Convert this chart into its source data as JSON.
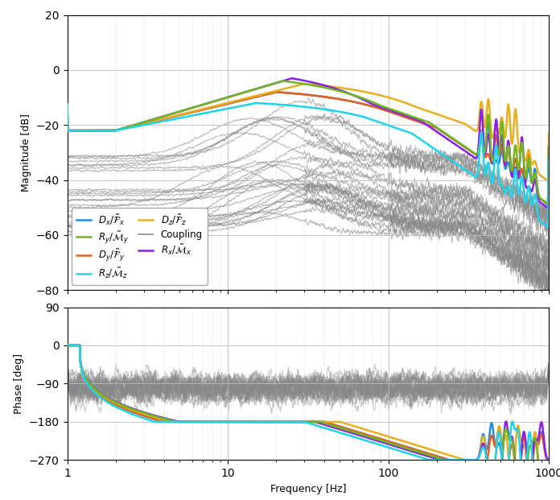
{
  "freq_min": 1,
  "freq_max": 1000,
  "mag_ylim": [
    -80,
    20
  ],
  "mag_yticks": [
    -80,
    -60,
    -40,
    -20,
    0,
    20
  ],
  "phase_ylim": [
    -270,
    90
  ],
  "phase_yticks": [
    -270,
    -180,
    -90,
    0,
    90
  ],
  "colors": {
    "Dx": "#1f8be8",
    "Dy": "#e8601f",
    "Dz": "#e8b01f",
    "Rx": "#8b1fe8",
    "Ry": "#6eb81f",
    "Rz": "#1fd4e8",
    "coupling": "#888888"
  },
  "legend_order_col1": [
    "Dx",
    "Dy",
    "Dz",
    "Rx"
  ],
  "legend_order_col2": [
    "Ry",
    "Rz",
    "coupling"
  ],
  "legend_labels": {
    "Dx": "$D_x/\\tilde{\\mathcal{F}}_x$",
    "Dy": "$D_y/\\tilde{\\mathcal{F}}_y$",
    "Dz": "$D_z/\\tilde{\\mathcal{F}}_z$",
    "Rx": "$R_x/\\tilde{\\mathcal{M}}_x$",
    "Ry": "$R_y/\\tilde{\\mathcal{M}}_y$",
    "Rz": "$R_z/\\tilde{\\mathcal{M}}_z$",
    "coupling": "Coupling"
  },
  "background_color": "#ffffff",
  "grid_color": "#bbbbbb",
  "subplot_ratio": [
    0.65,
    0.35
  ]
}
